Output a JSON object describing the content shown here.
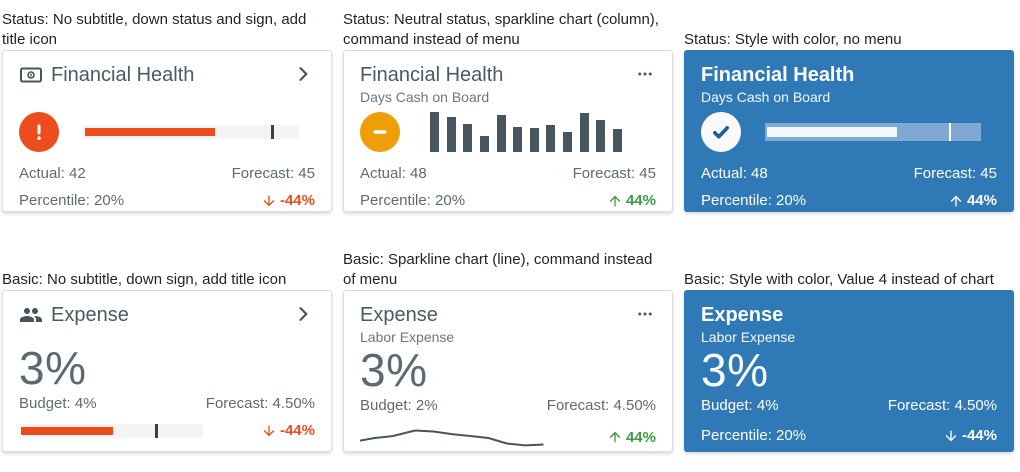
{
  "palette": {
    "caption": "#212529",
    "title": "#4A5A64",
    "subtitle": "#6E787D",
    "label": "#5F6B72",
    "value_gray": "#5A6A72",
    "slate": "#47555E",
    "orange": "#ED4D1C",
    "amber": "#EE9E06",
    "green": "#3E9B41",
    "card_blue": "#2F79B7",
    "check_blue": "#1C619F",
    "border": "#DDDDDD",
    "track": "#F4F4F4",
    "tickc": "#36424A",
    "blue_track": "#7FA9D3",
    "blue_fill": "#F4F7F9"
  },
  "cards": [
    {
      "caption": "Status: No subtitle, down status and sign, add title icon",
      "title": "Financial Health",
      "status": "error",
      "bullet": {
        "fill_pct": 60,
        "target_pct": 87
      },
      "row1": {
        "left": "Actual: 42",
        "right": "Forecast: 45"
      },
      "row2": {
        "left": "Percentile: 20%"
      },
      "delta": {
        "text": "-44%",
        "direction": "down",
        "color": "#ED4D1C"
      }
    },
    {
      "caption": "Status: Neutral status, sparkline chart (column), command instead of menu",
      "title": "Financial Health",
      "subtitle": "Days Cash on Board",
      "status": "neutral",
      "row1": {
        "left": "Actual: 48",
        "right": "Forecast: 45"
      },
      "row2": {
        "left": "Percentile: 20%"
      },
      "delta": {
        "text": "44%",
        "direction": "up",
        "color": "#3E9B41"
      }
    },
    {
      "caption": "Status: Style with color, no menu",
      "title": "Financial Health",
      "subtitle": "Days Cash on Board",
      "status": "check",
      "bullet": {
        "fill_pct": 60,
        "target_pct": 85
      },
      "row1": {
        "left": "Actual: 48",
        "right": "Forecast: 45"
      },
      "row2": {
        "left": "Percentile: 20%"
      },
      "delta": {
        "text": "44%",
        "direction": "up",
        "color": "#FFFFFF"
      }
    },
    {
      "caption": "Basic: No subtitle, down sign, add title icon",
      "title": "Expense",
      "value": "3%",
      "bullet": {
        "fill_pct": 50,
        "target_pct": 74
      },
      "row1": {
        "left": "Budget: 4%",
        "right": "Forecast: 4.50%"
      },
      "delta": {
        "text": "-44%",
        "direction": "down",
        "color": "#ED4D1C"
      }
    },
    {
      "caption": "Basic: Sparkline chart (line), command instead of menu",
      "title": "Expense",
      "subtitle": "Labor Expense",
      "value": "3%",
      "row1": {
        "left": "Budget: 2%",
        "right": "Forecast: 4.50%"
      },
      "delta": {
        "text": "44%",
        "direction": "up",
        "color": "#3E9B41"
      }
    },
    {
      "caption": "Basic: Style with color, Value 4 instead of chart",
      "title": "Expense",
      "subtitle": "Labor Expense",
      "value": "3%",
      "row1": {
        "left": "Budget: 4%",
        "right": "Forecast: 4.50%"
      },
      "row2": {
        "left": "Percentile: 20%"
      },
      "delta": {
        "text": "-44%",
        "direction": "down",
        "color": "#FFFFFF"
      }
    }
  ],
  "chart_data": [
    {
      "type": "bar",
      "title": "Days Cash on Board column sparkline",
      "values": [
        1.0,
        0.87,
        0.71,
        0.4,
        0.93,
        0.63,
        0.6,
        0.67,
        0.51,
        0.97,
        0.8,
        0.57
      ],
      "ylim": [
        0,
        1
      ],
      "note": "relative bar heights; sparkline has no axes or labels"
    },
    {
      "type": "line",
      "title": "Labor Expense line sparkline",
      "x": [
        0,
        0.08,
        0.18,
        0.3,
        0.4,
        0.5,
        0.6,
        0.7,
        0.8,
        0.9,
        1.0
      ],
      "y": [
        0.36,
        0.46,
        0.54,
        0.75,
        0.71,
        0.61,
        0.54,
        0.46,
        0.25,
        0.18,
        0.21
      ],
      "ylim": [
        0,
        1
      ],
      "note": "normalized coordinates; sparkline has no axes or labels"
    }
  ]
}
